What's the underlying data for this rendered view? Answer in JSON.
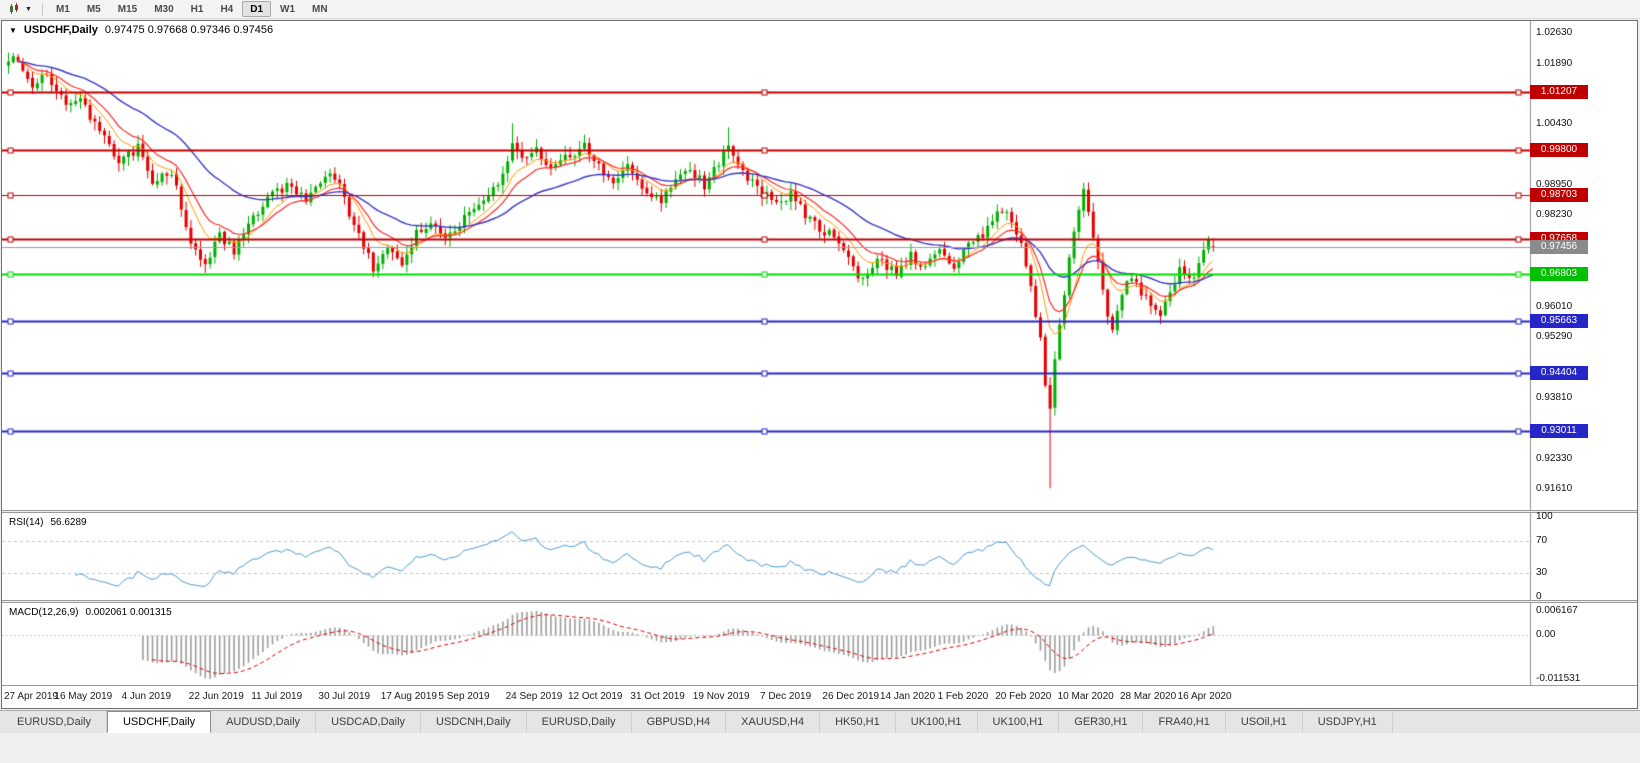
{
  "toolbar": {
    "timeframes": [
      "M1",
      "M5",
      "M15",
      "M30",
      "H1",
      "H4",
      "D1",
      "W1",
      "MN"
    ],
    "active_timeframe": "D1",
    "chart_menu_caret": "▼"
  },
  "chart": {
    "collapse_icon": "▼",
    "title_symbol": "USDCHF,Daily",
    "ohlc_text": "0.97475 0.97668 0.97346 0.97456"
  },
  "rsi": {
    "label": "RSI(14)",
    "value": "56.6289",
    "ticks": [
      {
        "label": "100",
        "v": 100
      },
      {
        "label": "70",
        "v": 70
      },
      {
        "label": "30",
        "v": 30
      },
      {
        "label": "0",
        "v": 0
      }
    ],
    "level_lines": [
      70,
      30
    ]
  },
  "macd": {
    "label": "MACD(12,26,9)",
    "values": "0.002061 0.001315",
    "tick_max": "0.006167",
    "tick_zero": "0.00",
    "tick_min": "-0.011531"
  },
  "price_axis": {
    "ticks": [
      {
        "label": "1.02630",
        "price": 1.0263
      },
      {
        "label": "1.01890",
        "price": 1.0189
      },
      {
        "label": "1.00430",
        "price": 1.0043
      },
      {
        "label": "0.98950",
        "price": 0.9895
      },
      {
        "label": "0.98230",
        "price": 0.9823
      },
      {
        "label": "0.96010",
        "price": 0.9601
      },
      {
        "label": "0.95290",
        "price": 0.9529
      },
      {
        "label": "0.93810",
        "price": 0.9381
      },
      {
        "label": "0.92330",
        "price": 0.9233
      },
      {
        "label": "0.91610",
        "price": 0.9161
      }
    ],
    "badges": [
      {
        "label": "1.01207",
        "price": 1.01207,
        "bg": "#C00000"
      },
      {
        "label": "0.99800",
        "price": 0.998,
        "bg": "#C00000"
      },
      {
        "label": "0.98703",
        "price": 0.98703,
        "bg": "#C00000"
      },
      {
        "label": "0.97658",
        "price": 0.97658,
        "bg": "#C00000"
      },
      {
        "label": "0.97456",
        "price": 0.97456,
        "bg": "#8A8A8A"
      },
      {
        "label": "0.96803",
        "price": 0.96803,
        "bg": "#00C000"
      },
      {
        "label": "0.95663",
        "price": 0.95663,
        "bg": "#2626C8"
      },
      {
        "label": "0.94404",
        "price": 0.94404,
        "bg": "#2626C8"
      },
      {
        "label": "0.93011",
        "price": 0.93011,
        "bg": "#2626C8"
      }
    ]
  },
  "hlines": [
    {
      "price": 1.01207,
      "color": "level_red",
      "w": 2
    },
    {
      "price": 0.998,
      "color": "level_red",
      "w": 2
    },
    {
      "price": 0.98703,
      "color": "level_red",
      "w": 1
    },
    {
      "price": 0.97658,
      "color": "level_red",
      "w": 2
    },
    {
      "price": 0.97456,
      "color": "current_price",
      "w": 1,
      "nohandles": true
    },
    {
      "price": 0.96803,
      "color": "level_green",
      "w": 2
    },
    {
      "price": 0.95663,
      "color": "level_blue",
      "w": 2
    },
    {
      "price": 0.94404,
      "color": "level_blue",
      "w": 2
    },
    {
      "price": 0.93011,
      "color": "level_blue",
      "w": 2
    }
  ],
  "dates": [
    {
      "label": "27 Apr 2019",
      "i": 0
    },
    {
      "label": "16 May 2019",
      "i": 13
    },
    {
      "label": "4 Jun 2019",
      "i": 27
    },
    {
      "label": "22 Jun 2019",
      "i": 41
    },
    {
      "label": "11 Jul 2019",
      "i": 54
    },
    {
      "label": "30 Jul 2019",
      "i": 68
    },
    {
      "label": "17 Aug 2019",
      "i": 81
    },
    {
      "label": "5 Sep 2019",
      "i": 93
    },
    {
      "label": "24 Sep 2019",
      "i": 107
    },
    {
      "label": "12 Oct 2019",
      "i": 120
    },
    {
      "label": "31 Oct 2019",
      "i": 133
    },
    {
      "label": "19 Nov 2019",
      "i": 146
    },
    {
      "label": "7 Dec 2019",
      "i": 160
    },
    {
      "label": "26 Dec 2019",
      "i": 173
    },
    {
      "label": "14 Jan 2020",
      "i": 185
    },
    {
      "label": "1 Feb 2020",
      "i": 197
    },
    {
      "label": "20 Feb 2020",
      "i": 209
    },
    {
      "label": "10 Mar 2020",
      "i": 222
    },
    {
      "label": "28 Mar 2020",
      "i": 235
    },
    {
      "label": "16 Apr 2020",
      "i": 247
    }
  ],
  "tabs": [
    "EURUSD,Daily",
    "USDCHF,Daily",
    "AUDUSD,Daily",
    "USDCAD,Daily",
    "USDCNH,Daily",
    "EURUSD,Daily",
    "GBPUSD,H4",
    "XAUUSD,H4",
    "HK50,H1",
    "UK100,H1",
    "UK100,H1",
    "GER30,H1",
    "FRA40,H1",
    "USOil,H1",
    "USDJPY,H1"
  ],
  "active_tab": 1,
  "colors": {
    "up": "#00AE00",
    "down": "#E60000",
    "ma_fast": "#FF9900",
    "ma_mid": "#FF2A2A",
    "ma_slow": "#3A3AC8",
    "rsi": "#4F9BD5",
    "macd_hist": "#9C9C9C",
    "macd_signal": "#E00000",
    "level_red": "#C00000",
    "level_green": "#00DC00",
    "level_blue": "#2626C8",
    "current_price": "#9C9C9C",
    "axis_line": "#909090"
  },
  "chart_data": {
    "type": "candlestick",
    "symbol": "USDCHF",
    "timeframe": "Daily",
    "bars": 252,
    "last_ohlc": [
      0.97475,
      0.97668,
      0.97346,
      0.97456
    ],
    "ylim": [
      0.9161,
      1.0263
    ],
    "price_path": [
      [
        0,
        1.0185
      ],
      [
        2,
        1.0205
      ],
      [
        5,
        1.014
      ],
      [
        8,
        1.0168
      ],
      [
        12,
        1.009
      ],
      [
        15,
        1.0108
      ],
      [
        19,
        1.0022
      ],
      [
        23,
        0.9958
      ],
      [
        27,
        0.9985
      ],
      [
        30,
        0.9905
      ],
      [
        34,
        0.9932
      ],
      [
        38,
        0.9762
      ],
      [
        41,
        0.9706
      ],
      [
        44,
        0.977
      ],
      [
        47,
        0.9735
      ],
      [
        50,
        0.9805
      ],
      [
        54,
        0.986
      ],
      [
        58,
        0.9898
      ],
      [
        62,
        0.9858
      ],
      [
        66,
        0.991
      ],
      [
        68,
        0.992
      ],
      [
        71,
        0.983
      ],
      [
        74,
        0.9752
      ],
      [
        76,
        0.969
      ],
      [
        79,
        0.9748
      ],
      [
        82,
        0.9705
      ],
      [
        85,
        0.9778
      ],
      [
        88,
        0.9802
      ],
      [
        91,
        0.9768
      ],
      [
        93,
        0.9795
      ],
      [
        96,
        0.9828
      ],
      [
        99,
        0.9868
      ],
      [
        102,
        0.9888
      ],
      [
        105,
        0.9992
      ],
      [
        107,
        0.9952
      ],
      [
        110,
        0.9975
      ],
      [
        113,
        0.9932
      ],
      [
        116,
        0.9958
      ],
      [
        120,
        0.9988
      ],
      [
        123,
        0.9942
      ],
      [
        126,
        0.9902
      ],
      [
        129,
        0.9936
      ],
      [
        133,
        0.9872
      ],
      [
        136,
        0.9856
      ],
      [
        139,
        0.9902
      ],
      [
        142,
        0.9936
      ],
      [
        145,
        0.9895
      ],
      [
        148,
        0.9952
      ],
      [
        150,
        0.9998
      ],
      [
        153,
        0.9928
      ],
      [
        156,
        0.9882
      ],
      [
        160,
        0.9852
      ],
      [
        163,
        0.9872
      ],
      [
        166,
        0.9822
      ],
      [
        169,
        0.9792
      ],
      [
        173,
        0.9762
      ],
      [
        176,
        0.9692
      ],
      [
        178,
        0.9668
      ],
      [
        181,
        0.9712
      ],
      [
        185,
        0.9682
      ],
      [
        188,
        0.9722
      ],
      [
        191,
        0.9702
      ],
      [
        194,
        0.9746
      ],
      [
        197,
        0.9692
      ],
      [
        200,
        0.9746
      ],
      [
        203,
        0.9772
      ],
      [
        206,
        0.9842
      ],
      [
        209,
        0.9812
      ],
      [
        211,
        0.9752
      ],
      [
        213,
        0.9648
      ],
      [
        215,
        0.953
      ],
      [
        216,
        0.942
      ],
      [
        217,
        0.9365
      ],
      [
        218,
        0.948
      ],
      [
        220,
        0.964
      ],
      [
        222,
        0.978
      ],
      [
        224,
        0.9885
      ],
      [
        226,
        0.976
      ],
      [
        228,
        0.964
      ],
      [
        230,
        0.9535
      ],
      [
        232,
        0.9625
      ],
      [
        234,
        0.968
      ],
      [
        236,
        0.964
      ],
      [
        238,
        0.96
      ],
      [
        240,
        0.9575
      ],
      [
        242,
        0.964
      ],
      [
        244,
        0.969
      ],
      [
        246,
        0.966
      ],
      [
        248,
        0.97
      ],
      [
        250,
        0.9755
      ],
      [
        251,
        0.97456
      ]
    ],
    "spikes": [
      {
        "i": 217,
        "low": 0.9163
      },
      {
        "i": 105,
        "high": 1.0045
      },
      {
        "i": 150,
        "high": 1.0035
      },
      {
        "i": 2,
        "high": 1.0212
      }
    ],
    "levels": {
      "red": [
        1.01207,
        0.998,
        0.98703,
        0.97658
      ],
      "green": [
        0.96803
      ],
      "blue": [
        0.95663,
        0.94404,
        0.93011
      ],
      "current_price": 0.97456
    },
    "indicators": {
      "rsi": {
        "period": 14,
        "current": 56.6289,
        "range": [
          0,
          100
        ],
        "guides": [
          70,
          30
        ]
      },
      "macd": {
        "fast": 12,
        "slow": 26,
        "signal": 9,
        "current_main": 0.002061,
        "current_signal": 0.001315,
        "scale_max": 0.006167,
        "scale_min": -0.011531
      },
      "moving_averages": [
        {
          "period": 8,
          "color": "#FF9900"
        },
        {
          "period": 13,
          "color": "#FF2A2A"
        },
        {
          "period": 34,
          "color": "#3A3AC8"
        }
      ]
    }
  }
}
